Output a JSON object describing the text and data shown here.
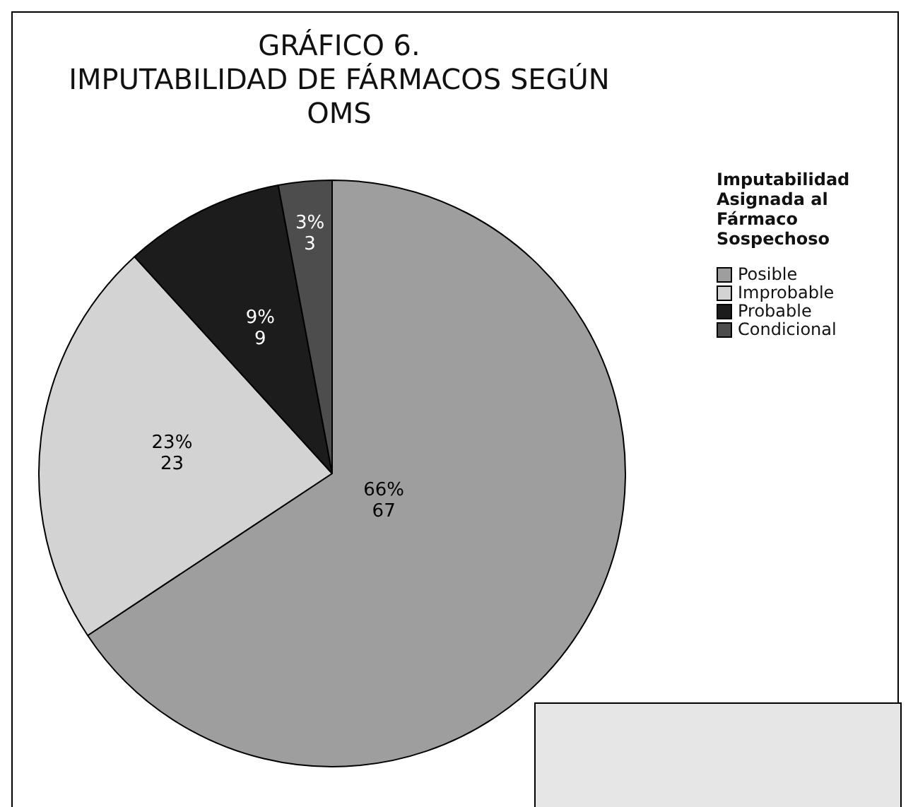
{
  "chart_data": {
    "type": "pie",
    "title": "GRÁFICO 6.",
    "subtitle": "IMPUTABILIDAD DE FÁRMACOS SEGÚN OMS",
    "legend_title": "Imputabilidad Asignada al Fármaco Sospechoso",
    "legend": "top right",
    "categories": [
      "Posible",
      "Improbable",
      "Probable",
      "Condicional"
    ],
    "values": [
      67,
      23,
      9,
      3
    ],
    "colors": [
      "#9e9e9e",
      "#d3d3d3",
      "#1c1c1c",
      "#4d4d4d"
    ],
    "value_labels": [
      "66%\n67",
      "23%\n23",
      "9%\n9",
      "3%\n3"
    ]
  }
}
